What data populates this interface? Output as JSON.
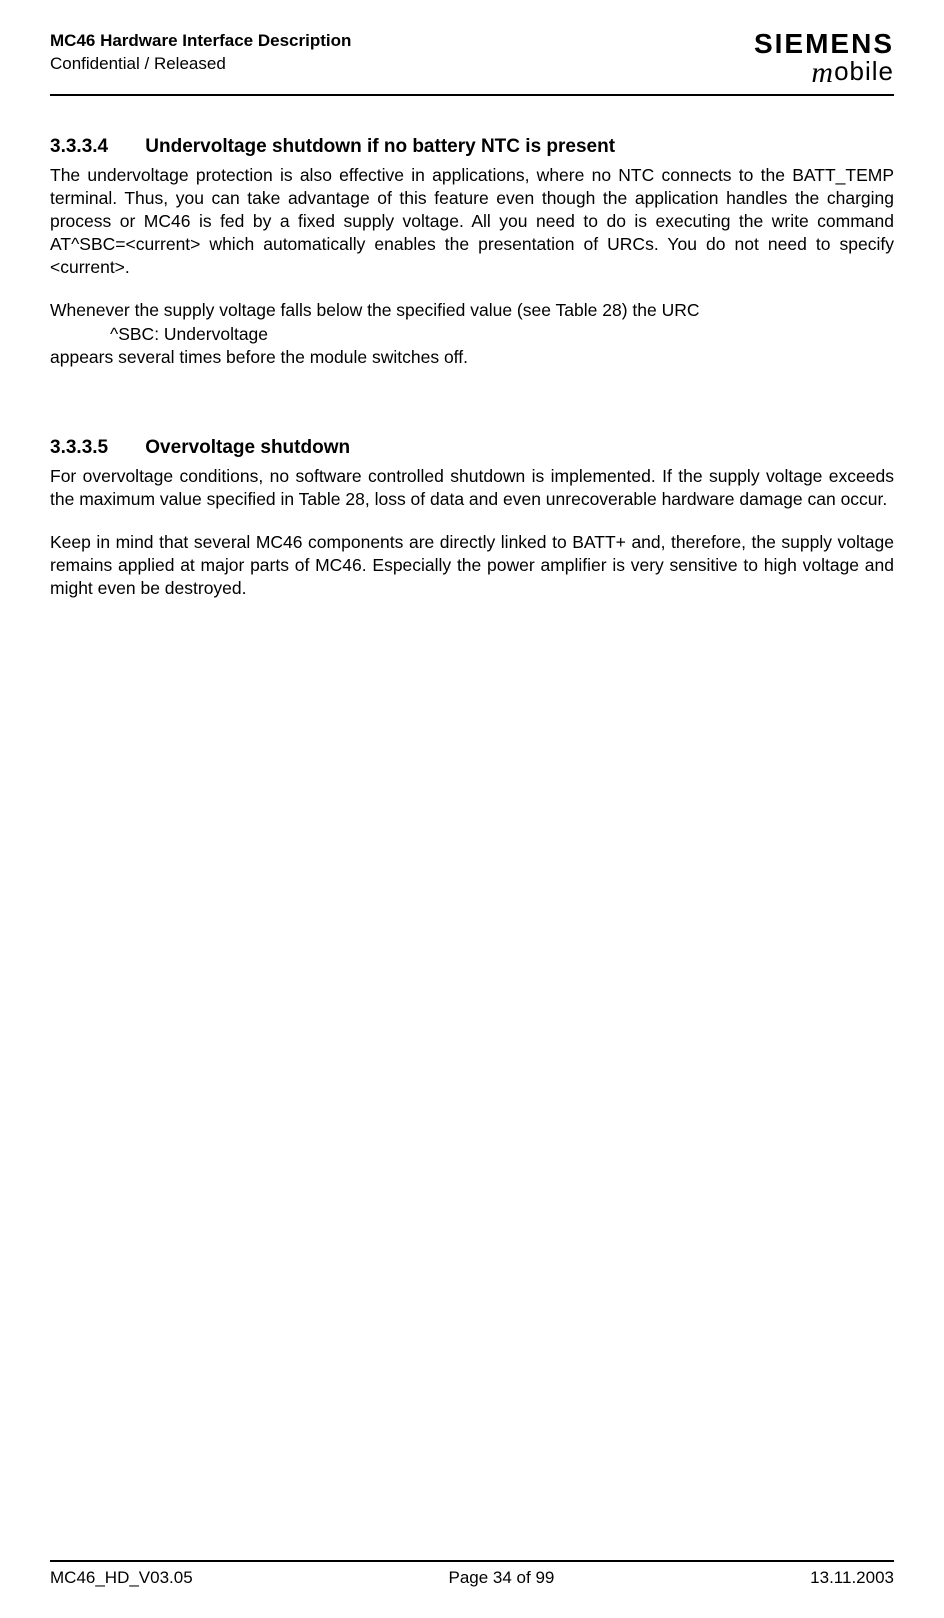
{
  "header": {
    "title": "MC46 Hardware Interface Description",
    "subtitle": "Confidential / Released",
    "logo_top": "SIEMENS",
    "logo_bottom_m": "m",
    "logo_bottom_rest": "obile"
  },
  "section1": {
    "number": "3.3.3.4",
    "title": "Undervoltage shutdown if no battery NTC is present",
    "para1": "The undervoltage protection is also effective in applications, where no NTC connects to the BATT_TEMP terminal. Thus, you can take advantage of this feature even though the application handles the charging process or MC46 is fed by a fixed supply voltage. All you need to do is executing the write command AT^SBC=<current> which automatically enables the presentation of URCs. You do not need to specify <current>.",
    "para2_line1": "Whenever the supply voltage falls below the specified value (see Table 28) the URC",
    "para2_line2": "^SBC:  Undervoltage",
    "para2_line3": "appears several times before the module switches off."
  },
  "section2": {
    "number": "3.3.3.5",
    "title": "Overvoltage shutdown",
    "para1": "For overvoltage conditions, no software controlled shutdown is implemented. If the supply voltage exceeds the maximum value specified in Table 28, loss of data and even unrecoverable hardware damage can occur.",
    "para2": "Keep in mind that several MC46 components are directly linked to BATT+ and, therefore, the supply voltage remains applied at major parts of MC46. Especially the power amplifier is very sensitive to high voltage and might even be destroyed."
  },
  "footer": {
    "left": "MC46_HD_V03.05",
    "center": "Page 34 of 99",
    "right": "13.11.2003"
  }
}
